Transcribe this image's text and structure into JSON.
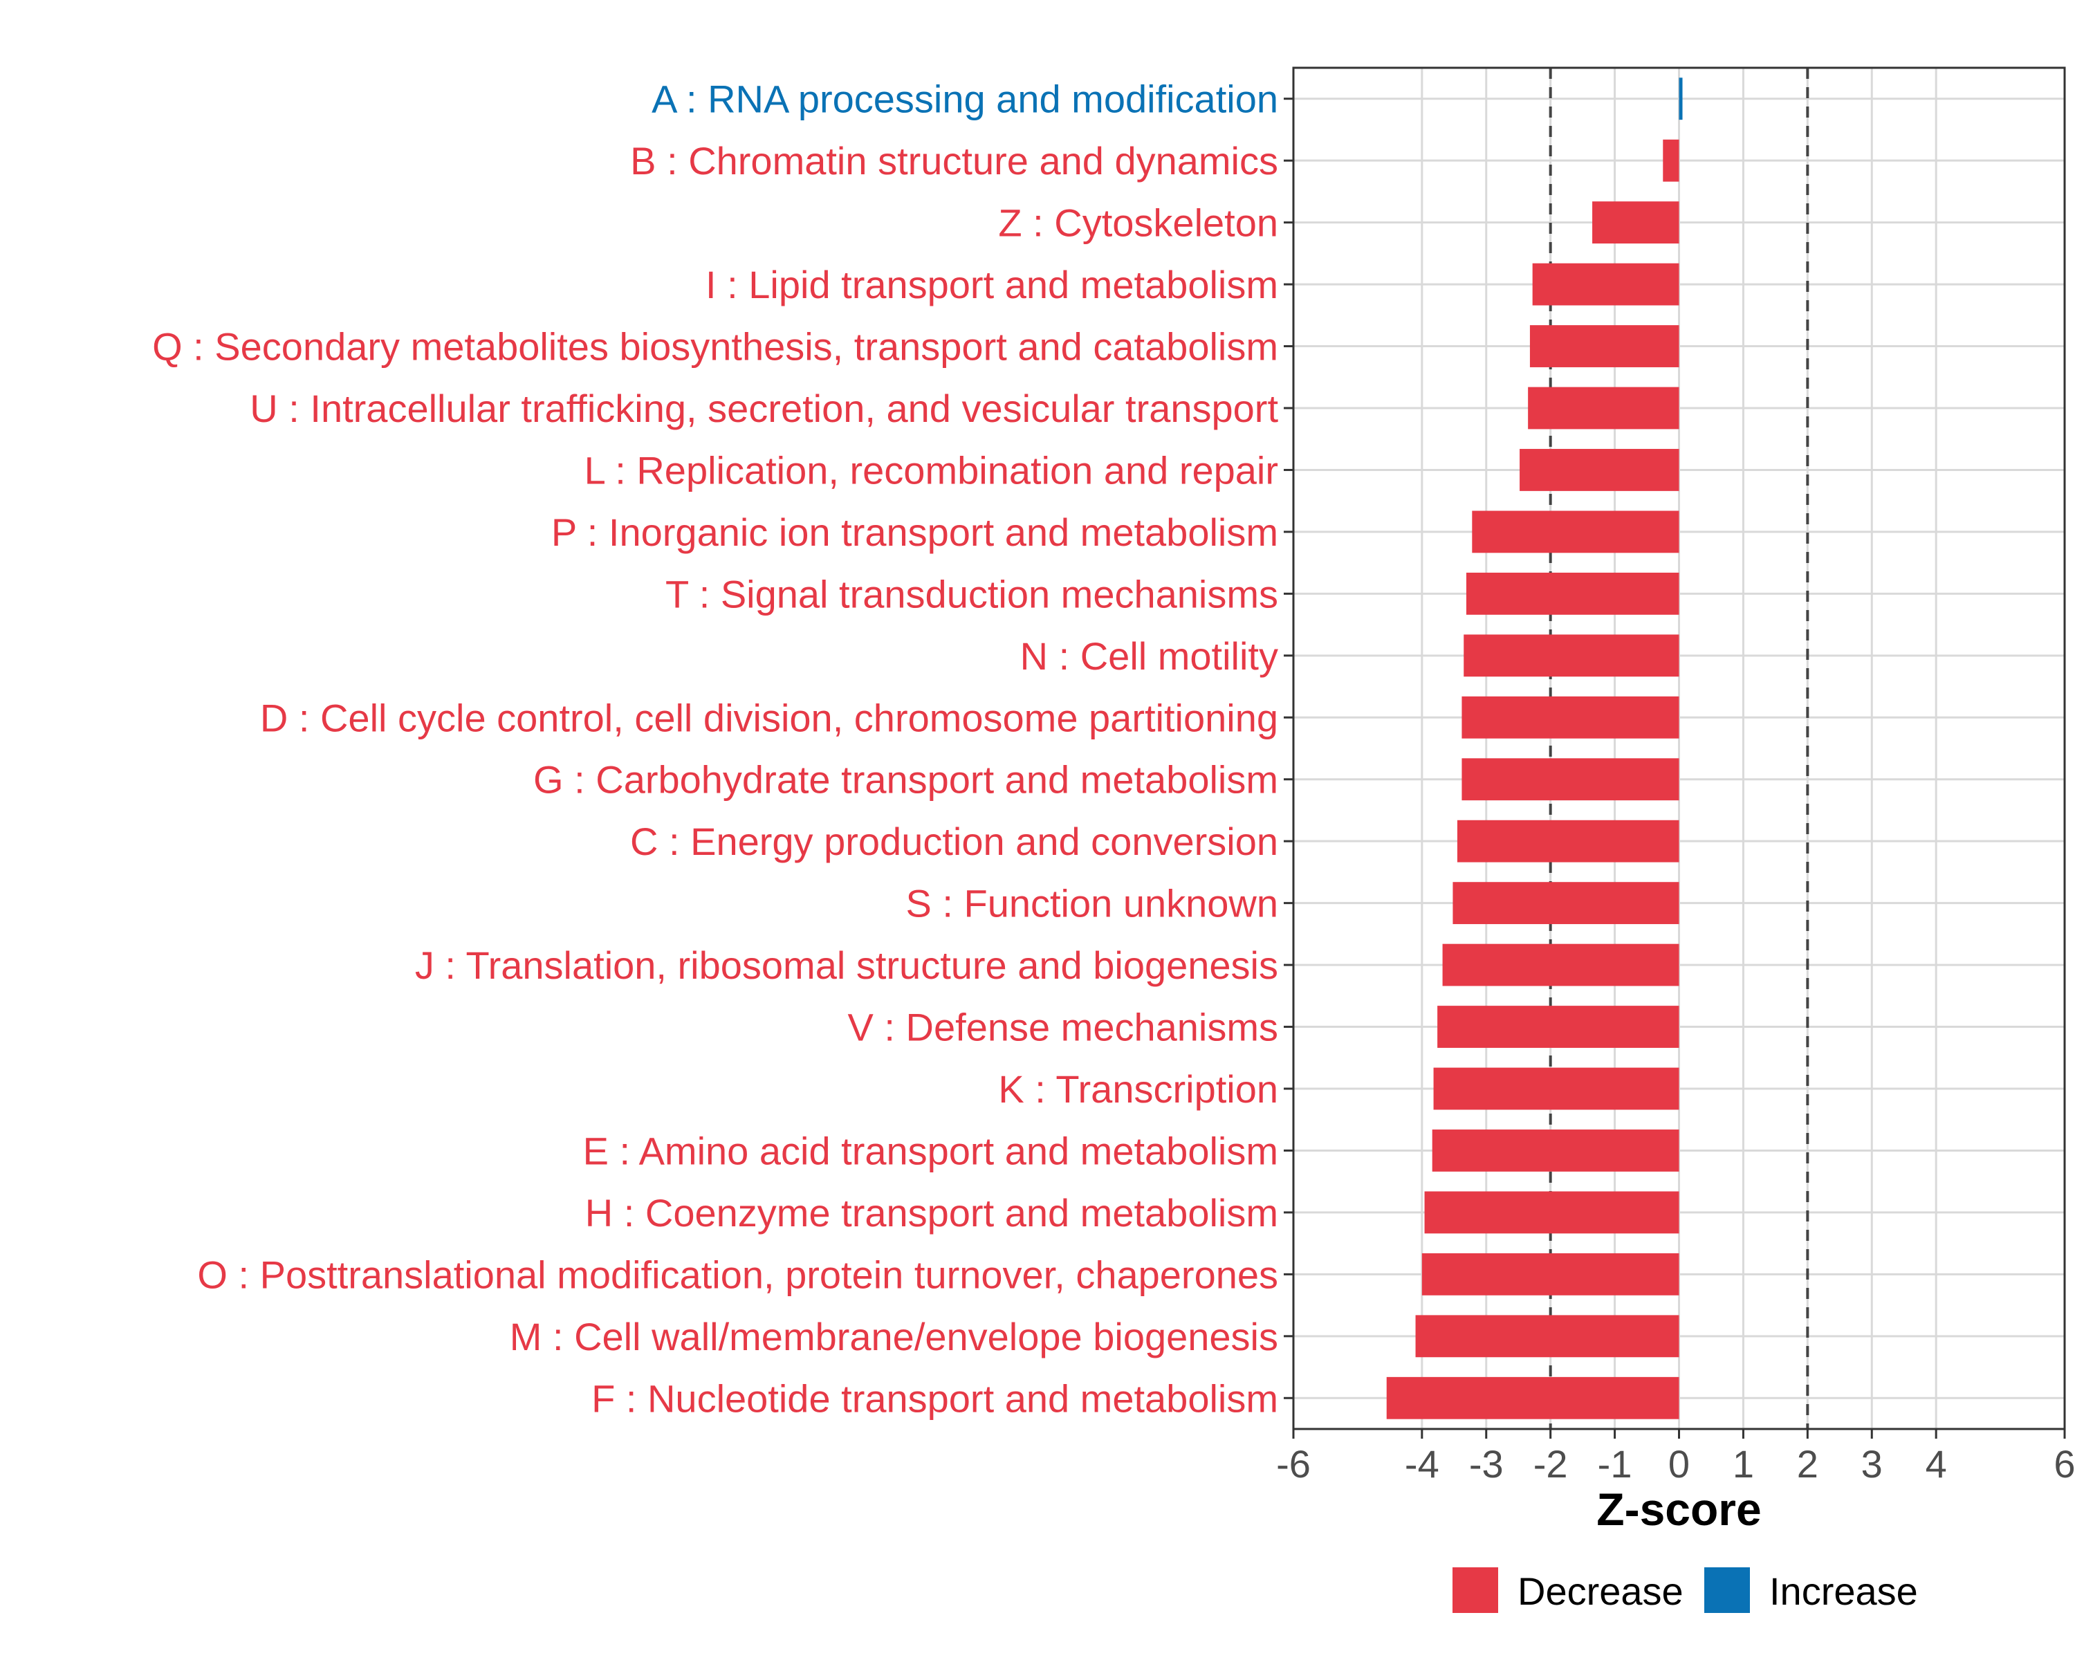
{
  "chart_data": {
    "type": "bar",
    "orientation": "horizontal",
    "xlabel": "Z-score",
    "xlim": [
      -6,
      6
    ],
    "x_ticks": [
      -6,
      -4,
      -3,
      -2,
      -1,
      0,
      1,
      2,
      3,
      4,
      6
    ],
    "reference_lines": [
      -2,
      2
    ],
    "grid": true,
    "legend": {
      "position": "bottom",
      "entries": [
        {
          "name": "Decrease",
          "color": "#e63946"
        },
        {
          "name": "Increase",
          "color": "#0a72b5"
        }
      ]
    },
    "categories": [
      "A : RNA processing and modification",
      "B : Chromatin structure and dynamics",
      "Z : Cytoskeleton",
      "I : Lipid transport and metabolism",
      "Q : Secondary metabolites biosynthesis, transport and catabolism",
      "U : Intracellular trafficking, secretion, and vesicular transport",
      "L : Replication, recombination and repair",
      "P : Inorganic ion transport and metabolism",
      "T : Signal transduction mechanisms",
      "N : Cell motility",
      "D : Cell cycle control, cell division, chromosome partitioning",
      "G : Carbohydrate transport and metabolism",
      "C : Energy production and conversion",
      "S : Function unknown",
      "J : Translation, ribosomal structure and biogenesis",
      "V : Defense mechanisms",
      "K : Transcription",
      "E : Amino acid transport and metabolism",
      "H : Coenzyme transport and metabolism",
      "O : Posttranslational modification, protein turnover, chaperones",
      "M : Cell wall/membrane/envelope biogenesis",
      "F : Nucleotide transport and metabolism"
    ],
    "values": [
      0.05,
      -0.25,
      -1.35,
      -2.28,
      -2.32,
      -2.35,
      -2.48,
      -3.22,
      -3.31,
      -3.35,
      -3.38,
      -3.38,
      -3.45,
      -3.52,
      -3.68,
      -3.76,
      -3.82,
      -3.84,
      -3.96,
      -4.0,
      -4.1,
      -4.55
    ],
    "directions": [
      "Increase",
      "Decrease",
      "Decrease",
      "Decrease",
      "Decrease",
      "Decrease",
      "Decrease",
      "Decrease",
      "Decrease",
      "Decrease",
      "Decrease",
      "Decrease",
      "Decrease",
      "Decrease",
      "Decrease",
      "Decrease",
      "Decrease",
      "Decrease",
      "Decrease",
      "Decrease",
      "Decrease",
      "Decrease"
    ]
  }
}
